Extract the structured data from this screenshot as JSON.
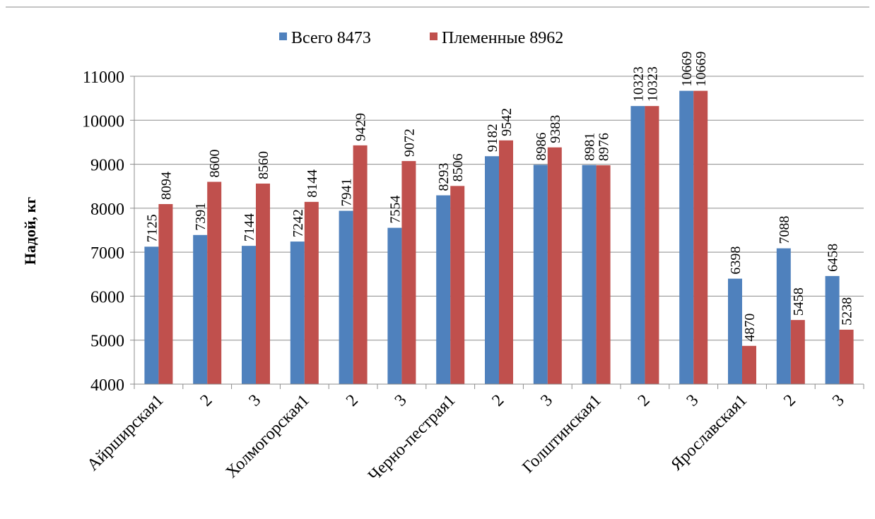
{
  "chart_data": {
    "type": "bar",
    "ylabel": "Надой, кг",
    "ylim": [
      4000,
      11000
    ],
    "yticks": [
      4000,
      5000,
      6000,
      7000,
      8000,
      9000,
      10000,
      11000
    ],
    "grid": true,
    "legend_position": "top",
    "categories": [
      "Айрширская1",
      "2",
      "3",
      "Холмогорская1",
      "2",
      "3",
      "Черно-пестрая1",
      "2",
      "3",
      "Голштинская1",
      "2",
      "3",
      "Ярославская1",
      "2",
      "3"
    ],
    "series": [
      {
        "name": "Всего 8473",
        "color": "#4F81BD",
        "values": [
          7125,
          7391,
          7144,
          7242,
          7941,
          7554,
          8293,
          9182,
          8986,
          8981,
          10323,
          10669,
          6398,
          7088,
          6458
        ]
      },
      {
        "name": "Племенные 8962",
        "color": "#C0504D",
        "values": [
          8094,
          8600,
          8560,
          8144,
          9429,
          9072,
          8506,
          9542,
          9383,
          8976,
          10323,
          10669,
          4870,
          5458,
          5238
        ]
      }
    ]
  }
}
